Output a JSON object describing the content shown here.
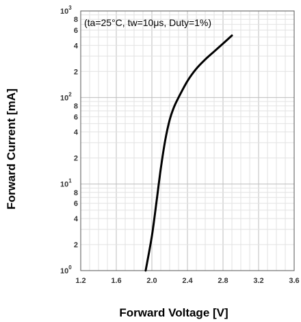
{
  "chart_data": {
    "type": "line",
    "title": "",
    "annotation": "(ta=25°C, tw=10μs, Duty=1%)",
    "xlabel": "Forward Voltage [V]",
    "ylabel": "Forward Current [mA]",
    "xlim": [
      1.2,
      3.6
    ],
    "ylim": [
      1,
      1000
    ],
    "yscale": "log",
    "grid": true,
    "x_ticks": [
      "1.2",
      "1.6",
      "2.0",
      "2.4",
      "2.8",
      "3.2",
      "3.6"
    ],
    "y_decade_ticks": [
      {
        "value": 1,
        "base": "10",
        "exp": "0"
      },
      {
        "value": 10,
        "base": "10",
        "exp": "1"
      },
      {
        "value": 100,
        "base": "10",
        "exp": "2"
      },
      {
        "value": 1000,
        "base": "10",
        "exp": "3"
      }
    ],
    "y_minor_labels": [
      {
        "value": 2,
        "label": "2"
      },
      {
        "value": 4,
        "label": "4"
      },
      {
        "value": 6,
        "label": "6"
      },
      {
        "value": 8,
        "label": "8"
      },
      {
        "value": 20,
        "label": "2"
      },
      {
        "value": 40,
        "label": "4"
      },
      {
        "value": 60,
        "label": "6"
      },
      {
        "value": 80,
        "label": "8"
      },
      {
        "value": 200,
        "label": "2"
      },
      {
        "value": 400,
        "label": "4"
      },
      {
        "value": 600,
        "label": "6"
      },
      {
        "value": 800,
        "label": "8"
      }
    ],
    "series": [
      {
        "color": "#000000",
        "x": [
          1.93,
          2.0,
          2.05,
          2.1,
          2.15,
          2.2,
          2.25,
          2.3,
          2.4,
          2.5,
          2.6,
          2.7,
          2.8,
          2.9
        ],
        "y": [
          1,
          2.5,
          6,
          15,
          32,
          55,
          78,
          100,
          155,
          215,
          275,
          340,
          420,
          520
        ]
      }
    ]
  }
}
